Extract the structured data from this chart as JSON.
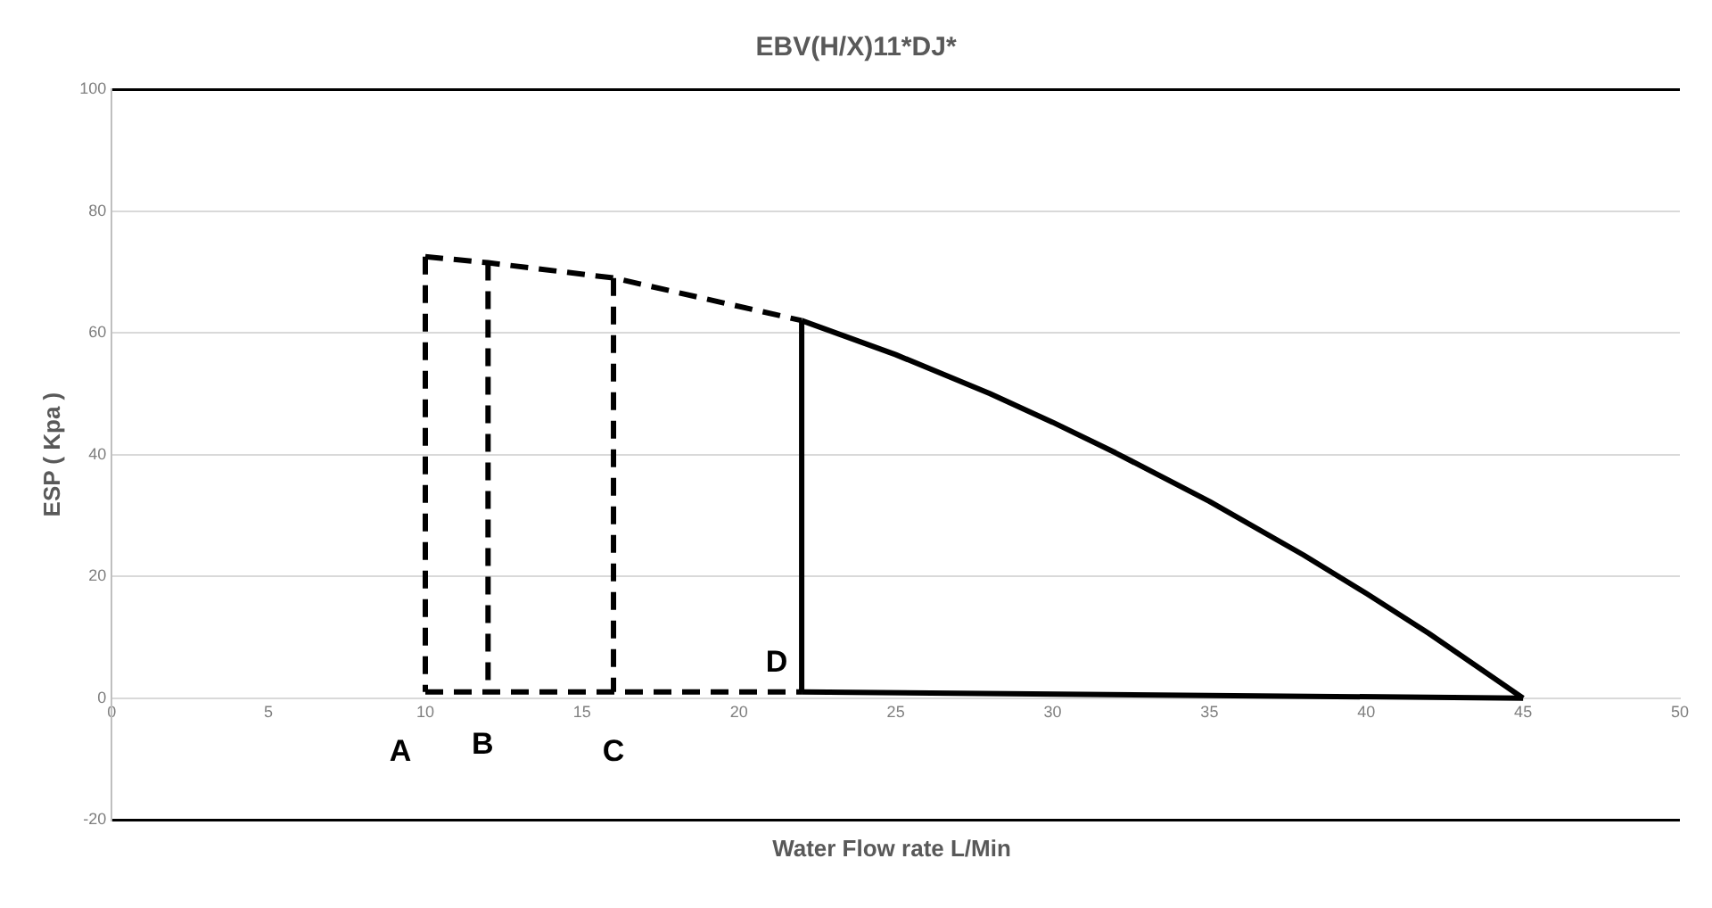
{
  "chart_data": {
    "type": "line",
    "title": "EBV(H/X)11*DJ*",
    "xlabel": "Water Flow rate  L/Min",
    "ylabel": "ESP ( Kpa )",
    "xlim": [
      0,
      50
    ],
    "xticks": [
      0,
      5,
      10,
      15,
      20,
      25,
      30,
      35,
      40,
      45,
      50
    ],
    "ylim": [
      -20,
      100
    ],
    "yticks": [
      -20,
      0,
      20,
      40,
      60,
      80,
      100
    ],
    "grid": "y",
    "legend": false,
    "marker": "none",
    "series": [
      {
        "color": "#000000",
        "line_style": "dashed",
        "x": [
          10,
          12,
          16,
          22
        ],
        "values": [
          72.5,
          71.5,
          69,
          62
        ]
      },
      {
        "color": "#000000",
        "line_style": "dashed",
        "x": [
          10,
          10
        ],
        "values": [
          72.5,
          1
        ]
      },
      {
        "color": "#000000",
        "line_style": "dashed",
        "x": [
          12,
          12
        ],
        "values": [
          71.5,
          1
        ]
      },
      {
        "color": "#000000",
        "line_style": "dashed",
        "x": [
          16,
          16
        ],
        "values": [
          69,
          1
        ]
      },
      {
        "color": "#000000",
        "line_style": "dashed",
        "x": [
          10,
          22
        ],
        "values": [
          1,
          1
        ]
      },
      {
        "color": "#000000",
        "line_style": "solid",
        "x": [
          22,
          22
        ],
        "values": [
          1,
          62
        ]
      },
      {
        "color": "#000000",
        "line_style": "solid",
        "x": [
          22,
          25,
          28,
          30,
          32,
          35,
          38,
          40,
          42,
          45
        ],
        "values": [
          62,
          56.4,
          50,
          45.3,
          40.3,
          32.3,
          23.5,
          17.2,
          10.6,
          0
        ]
      },
      {
        "color": "#000000",
        "line_style": "solid",
        "x": [
          22,
          45
        ],
        "values": [
          1,
          0
        ]
      }
    ],
    "annotations": [
      {
        "text": "A",
        "x": 10,
        "y": 1
      },
      {
        "text": "B",
        "x": 12,
        "y": 1
      },
      {
        "text": "C",
        "x": 16,
        "y": 1
      },
      {
        "text": "D",
        "x": 22,
        "y": 1
      }
    ]
  }
}
